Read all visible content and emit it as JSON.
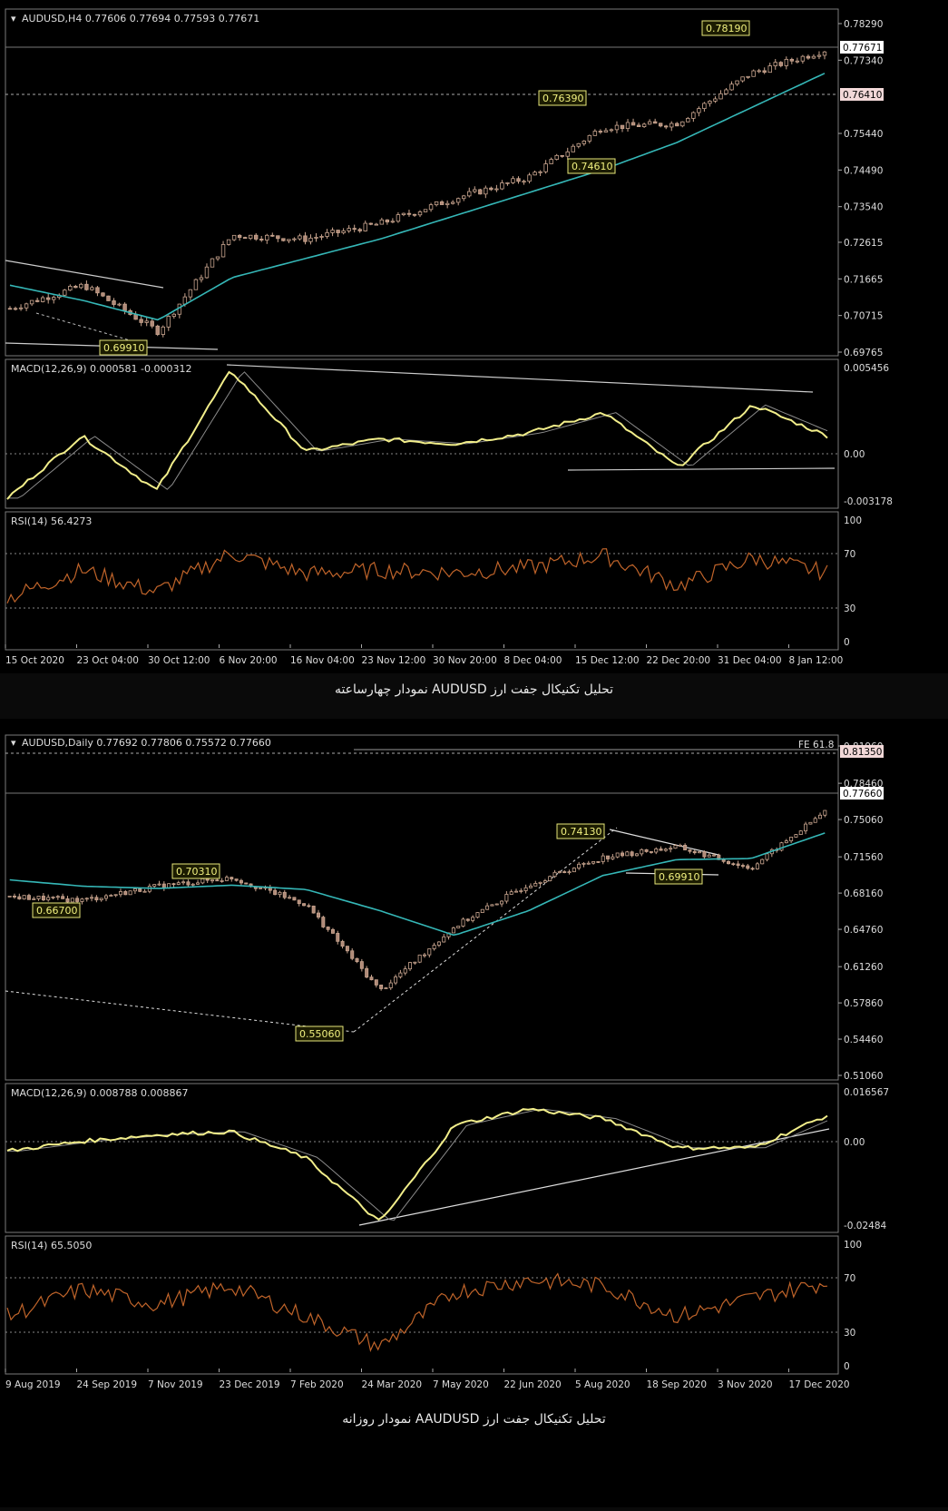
{
  "h4": {
    "header": "AUDUSD,H4  0.77606 0.77694 0.77593 0.77671",
    "price_ticks": [
      "0.78290",
      "0.77340",
      "0.75440",
      "0.74490",
      "0.73540",
      "0.72615",
      "0.71665",
      "0.70715",
      "0.69765"
    ],
    "current_price": "0.77671",
    "level_price": "0.76410",
    "annotations": [
      "0.78190",
      "0.76390",
      "0.74610",
      "0.69910"
    ],
    "macd_header": "MACD(12,26,9) 0.000581 -0.000312",
    "macd_ticks": [
      "0.005456",
      "0.00",
      "-0.003178"
    ],
    "rsi_header": "RSI(14) 56.4273",
    "rsi_ticks": [
      "100",
      "70",
      "30",
      "0"
    ],
    "dates": [
      "15 Oct 2020",
      "23 Oct 04:00",
      "30 Oct 12:00",
      "6 Nov 20:00",
      "16 Nov 04:00",
      "23 Nov 12:00",
      "30 Nov 20:00",
      "8 Dec 04:00",
      "15 Dec 12:00",
      "22 Dec 20:00",
      "31 Dec 04:00",
      "8 Jan 12:00"
    ],
    "caption": "تحلیل تکنیکال جفت ارز AUDUSD نمودار چهارساعته"
  },
  "daily": {
    "header": "AUDUSD,Daily  0.77692 0.77806 0.75572 0.77660",
    "fe_label": "FE 61.8",
    "price_ticks": [
      "0.81960",
      "0.78460",
      "0.75060",
      "0.71560",
      "0.68160",
      "0.64760",
      "0.61260",
      "0.57860",
      "0.54460",
      "0.51060"
    ],
    "current_price": "0.77660",
    "level_price": "0.81350",
    "annotations": [
      "0.74130",
      "0.70310",
      "0.66700",
      "0.69910",
      "0.55060"
    ],
    "macd_header": "MACD(12,26,9) 0.008788 0.008867",
    "macd_ticks": [
      "0.016567",
      "0.00",
      "-0.02484"
    ],
    "rsi_header": "RSI(14) 65.5050",
    "rsi_ticks": [
      "100",
      "70",
      "30",
      "0"
    ],
    "dates": [
      "9 Aug 2019",
      "24 Sep 2019",
      "7 Nov 2019",
      "23 Dec 2019",
      "7 Feb 2020",
      "24 Mar 2020",
      "7 May 2020",
      "22 Jun 2020",
      "5 Aug 2020",
      "18 Sep 2020",
      "3 Nov 2020",
      "17 Dec 2020"
    ],
    "caption": "تحلیل تکنیکال جفت ارز AAUDUSD نمودار روزانه"
  },
  "chart_data": [
    {
      "type": "candlestick",
      "symbol": "AUDUSD",
      "timeframe": "H4",
      "x": [
        "15 Oct 2020",
        "23 Oct 04:00",
        "30 Oct 12:00",
        "6 Nov 20:00",
        "16 Nov 04:00",
        "23 Nov 12:00",
        "30 Nov 20:00",
        "8 Dec 04:00",
        "15 Dec 12:00",
        "22 Dec 20:00",
        "31 Dec 04:00",
        "8 Jan 12:00"
      ],
      "close_approx": [
        0.709,
        0.715,
        0.703,
        0.728,
        0.727,
        0.731,
        0.7375,
        0.743,
        0.756,
        0.757,
        0.77,
        0.776
      ],
      "ma_approx": [
        0.715,
        0.711,
        0.706,
        0.717,
        0.722,
        0.727,
        0.733,
        0.739,
        0.745,
        0.752,
        0.761,
        0.77
      ],
      "ylim": [
        0.69765,
        0.7829
      ],
      "macd": {
        "ylim": [
          -0.003178,
          0.005456
        ],
        "approx": [
          -0.003,
          0.001,
          -0.0025,
          0.0052,
          0.0,
          0.0008,
          0.0005,
          0.0012,
          0.0025,
          -0.001,
          0.003,
          0.001
        ]
      },
      "rsi": {
        "levels": [
          30,
          70
        ],
        "approx": [
          35,
          58,
          40,
          72,
          55,
          58,
          56,
          60,
          70,
          45,
          68,
          56
        ]
      }
    },
    {
      "type": "candlestick",
      "symbol": "AUDUSD",
      "timeframe": "Daily",
      "x": [
        "9 Aug 2019",
        "24 Sep 2019",
        "7 Nov 2019",
        "23 Dec 2019",
        "7 Feb 2020",
        "24 Mar 2020",
        "7 May 2020",
        "22 Jun 2020",
        "5 Aug 2020",
        "18 Sep 2020",
        "3 Nov 2020",
        "17 Dec 2020"
      ],
      "close_approx": [
        0.678,
        0.675,
        0.688,
        0.696,
        0.671,
        0.59,
        0.65,
        0.69,
        0.715,
        0.725,
        0.705,
        0.758
      ],
      "ma_approx": [
        0.694,
        0.688,
        0.686,
        0.689,
        0.685,
        0.665,
        0.642,
        0.665,
        0.698,
        0.713,
        0.714,
        0.738
      ],
      "ylim": [
        0.5106,
        0.8196
      ],
      "macd": {
        "ylim": [
          -0.02484,
          0.016567
        ],
        "approx": [
          -0.002,
          0.001,
          0.003,
          0.004,
          -0.004,
          -0.024,
          0.006,
          0.011,
          0.008,
          -0.001,
          -0.001,
          0.009
        ]
      },
      "rsi": {
        "levels": [
          30,
          70
        ],
        "approx": [
          40,
          62,
          50,
          65,
          40,
          15,
          60,
          70,
          65,
          40,
          55,
          68
        ]
      }
    }
  ]
}
